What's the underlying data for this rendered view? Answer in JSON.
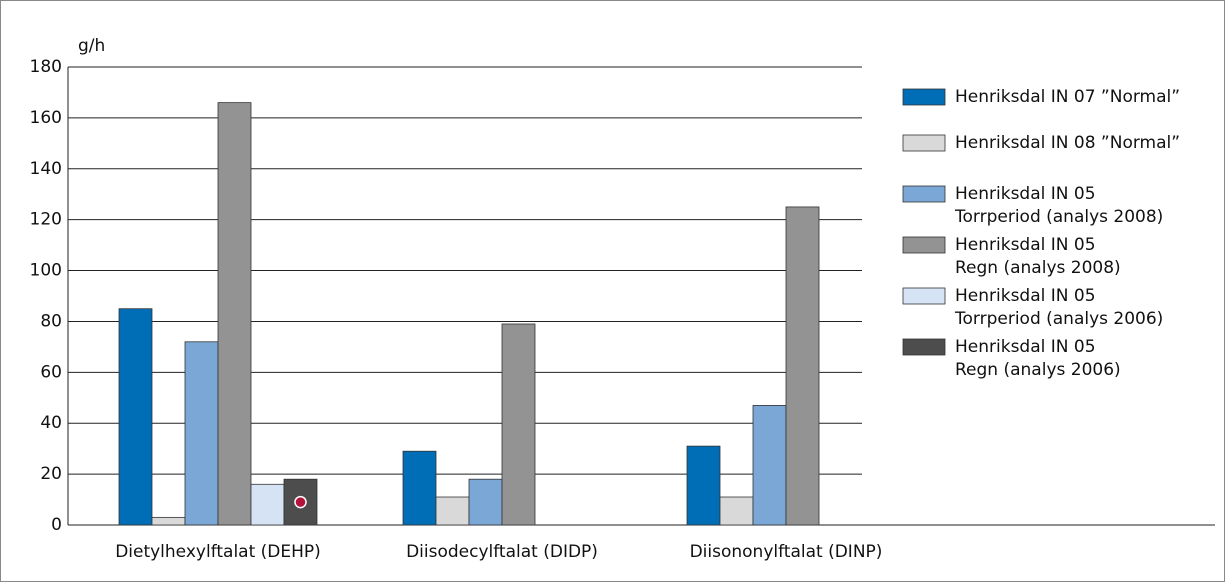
{
  "chart_data": {
    "type": "bar",
    "y_label": "g/h",
    "categories": [
      "Dietylhexylftalat (DEHP)",
      "Diisodecylftalat (DIDP)",
      "Diisononylftalat (DINP)"
    ],
    "series": [
      {
        "name": "Henriksdal IN 07 ”Normal”",
        "color": "#006eb6",
        "values": [
          85,
          29,
          31
        ]
      },
      {
        "name": "Henriksdal IN 08 ”Normal”",
        "color": "#d9d9d9",
        "values": [
          3,
          11,
          11
        ]
      },
      {
        "name": "Henriksdal IN 05\nTorrperiod (analys 2008)",
        "color": "#7ba7d7",
        "values": [
          72,
          18,
          47
        ]
      },
      {
        "name": "Henriksdal IN 05\nRegn (analys 2008)",
        "color": "#939393",
        "values": [
          166,
          79,
          125
        ]
      },
      {
        "name": "Henriksdal IN 05\nTorrperiod (analys 2006)",
        "color": "#d5e3f5",
        "values": [
          16,
          null,
          null
        ]
      },
      {
        "name": "Henriksdal IN 05\nRegn (analys 2006)",
        "color": "#4d4d4d",
        "values": [
          18,
          null,
          null
        ]
      }
    ],
    "ylim": [
      0,
      180
    ],
    "yticks": [
      0,
      20,
      40,
      60,
      80,
      100,
      120,
      140,
      160,
      180
    ],
    "grid": true,
    "legend": "right"
  }
}
